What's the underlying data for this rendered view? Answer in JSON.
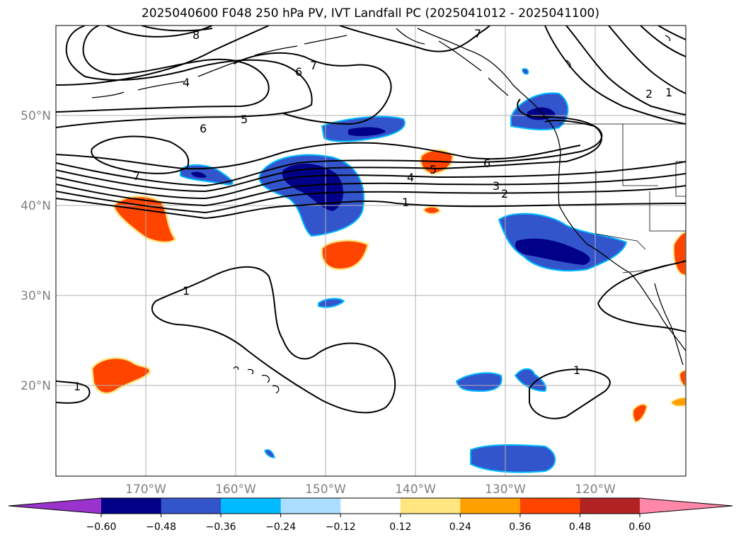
{
  "title": "2025040600 F048 250 hPa PV, IVT Landfall PC (2025041012 - 2025041100)",
  "lat_labels": [
    "50°N",
    "40°N",
    "30°N",
    "20°N"
  ],
  "lon_labels": [
    "170°W",
    "160°W",
    "150°W",
    "140°W",
    "130°W",
    "120°W"
  ],
  "pv_contour_labels": {
    "c8": "8",
    "c7a": "7",
    "c7b": "7",
    "c7c": "7",
    "c6a": "6",
    "c6b": "6",
    "c6c": "6",
    "c5a": "5",
    "c5b": "5",
    "c4a": "4",
    "c4b": "4",
    "c3": "3",
    "c2a": "2",
    "c2b": "2",
    "c1a": "1",
    "c1b": "1",
    "c1c": "1",
    "c1d": "1",
    "c1e": "1"
  },
  "colorbar": {
    "ticks": [
      "−0.60",
      "−0.48",
      "−0.36",
      "−0.24",
      "−0.12",
      "0.12",
      "0.24",
      "0.36",
      "0.48",
      "0.60"
    ],
    "colors": [
      "#9933cc",
      "#000088",
      "#3355cc",
      "#00bbff",
      "#aaddff",
      "#ffffff",
      "#ffe680",
      "#ffa000",
      "#ff4400",
      "#b22222",
      "#ff88aa"
    ]
  },
  "chart_data": {
    "type": "heatmap",
    "title": "2025040600 F048 250 hPa PV, IVT Landfall PC (2025041012 - 2025041100)",
    "lon_range": [
      -180,
      -110
    ],
    "lat_range": [
      10,
      60
    ],
    "contour_field": "250 hPa PV",
    "contour_levels": [
      1,
      2,
      3,
      4,
      5,
      6,
      7,
      8
    ],
    "shaded_field": "IVT Landfall PC",
    "shaded_levels": [
      -0.6,
      -0.48,
      -0.36,
      -0.24,
      -0.12,
      0.12,
      0.24,
      0.36,
      0.48,
      0.6
    ],
    "grid": true,
    "colorbar_placement": "bottom"
  }
}
